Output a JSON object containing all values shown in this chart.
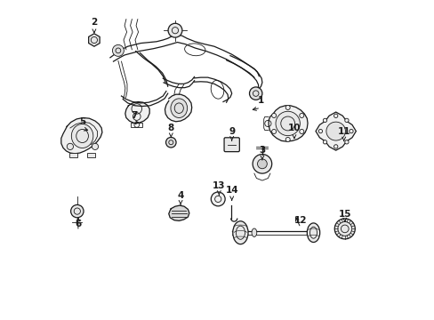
{
  "background_color": "#ffffff",
  "line_color": "#1a1a1a",
  "fig_width": 4.89,
  "fig_height": 3.6,
  "dpi": 100,
  "label_positions": {
    "1": [
      0.635,
      0.685,
      0.6,
      0.655
    ],
    "2": [
      0.115,
      0.93,
      0.115,
      0.895
    ],
    "3": [
      0.64,
      0.53,
      0.64,
      0.5
    ],
    "4": [
      0.385,
      0.39,
      0.385,
      0.36
    ],
    "5": [
      0.08,
      0.62,
      0.105,
      0.59
    ],
    "6": [
      0.065,
      0.3,
      0.065,
      0.33
    ],
    "7": [
      0.24,
      0.64,
      0.265,
      0.615
    ],
    "8": [
      0.355,
      0.6,
      0.355,
      0.57
    ],
    "9": [
      0.545,
      0.59,
      0.545,
      0.56
    ],
    "10": [
      0.74,
      0.6,
      0.74,
      0.565
    ],
    "11": [
      0.895,
      0.59,
      0.895,
      0.558
    ],
    "12": [
      0.76,
      0.31,
      0.74,
      0.33
    ],
    "13": [
      0.505,
      0.42,
      0.505,
      0.39
    ],
    "14": [
      0.545,
      0.405,
      0.545,
      0.365
    ],
    "15": [
      0.898,
      0.33,
      0.898,
      0.305
    ]
  }
}
